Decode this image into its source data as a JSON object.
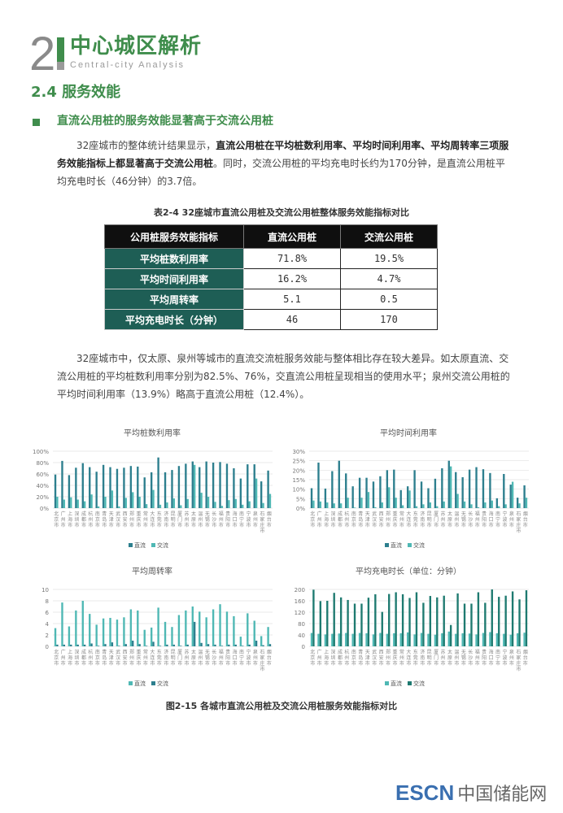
{
  "header": {
    "chapter_number": "2",
    "chapter_title": "中心城区解析",
    "chapter_subtitle": "Central-city Analysis"
  },
  "section": {
    "title": "2.4 服务效能",
    "subtitle": "直流公用桩的服务效能显著高于交流公用桩"
  },
  "paragraph1": {
    "a": "32座城市的整体统计结果显示，",
    "bold": "直流公用桩在平均桩数利用率、平均时间利用率、平均周转率三项服务效能指标上都显著高于交流公用桩",
    "b": "。同时，交流公用桩的平均充电时长约为170分钟，是直流公用桩平均充电时长（46分钟）的3.7倍。"
  },
  "table": {
    "caption": "表2-4 32座城市直流公用桩及交流公用桩整体服务效能指标对比",
    "headers": [
      "公用桩服务效能指标",
      "直流公用桩",
      "交流公用桩"
    ],
    "rows": [
      [
        "平均桩数利用率",
        "71.8%",
        "19.5%"
      ],
      [
        "平均时间利用率",
        "16.2%",
        "4.7%"
      ],
      [
        "平均周转率",
        "5.1",
        "0.5"
      ],
      [
        "平均充电时长（分钟）",
        "46",
        "170"
      ]
    ]
  },
  "paragraph2": "32座城市中，仅太原、泉州等城市的直流交流桩服务效能与整体相比存在较大差异。如太原直流、交流公用桩的平均桩数利用率分别为82.5%、76%，交直流公用桩呈现相当的使用水平；泉州交流公用桩的平均时间利用率（13.9%）略高于直流公用桩（12.4%）。",
  "colors": {
    "green": "#3f8d4c",
    "dark_teal": "#2d7f8e",
    "light_teal": "#4fb8b4",
    "table_teal": "#1e5e55"
  },
  "chart_data": [
    {
      "type": "bar",
      "title": "平均桩数利用率",
      "yticks": [
        "0%",
        "20%",
        "40%",
        "60%",
        "80%",
        "100%"
      ],
      "ylim": [
        0,
        100
      ],
      "grid": true,
      "legend": "bottom",
      "categories": [
        "北京市",
        "广州市",
        "上海市",
        "深圳市",
        "成都市",
        "杭州市",
        "南京市",
        "青岛市",
        "天津市",
        "武汉市",
        "西安市",
        "郑州市",
        "重庆市",
        "常州市",
        "大连市",
        "东莞市",
        "济南市",
        "昆明市",
        "厦门市",
        "苏州市",
        "太原市",
        "温州市",
        "无锡市",
        "长沙市",
        "福州市",
        "贵阳市",
        "海口市",
        "南宁市",
        "宁波市",
        "泉州市",
        "石家庄市",
        "烟台市"
      ],
      "series": [
        {
          "name": "直流",
          "color": "#2d7f8e",
          "values": [
            59,
            83,
            58,
            71,
            79,
            72,
            64,
            76,
            72,
            69,
            71,
            74,
            73,
            54,
            63,
            89,
            63,
            67,
            74,
            78,
            82,
            72,
            82,
            80,
            81,
            78,
            70,
            52,
            77,
            77,
            47,
            66
          ]
        },
        {
          "name": "交流",
          "color": "#4fb8b4",
          "values": [
            20,
            15,
            19,
            15,
            12,
            24,
            3,
            20,
            31,
            3,
            18,
            28,
            20,
            7,
            32,
            6,
            10,
            17,
            5,
            16,
            76,
            27,
            20,
            11,
            4,
            14,
            16,
            6,
            12,
            52,
            9,
            25
          ]
        }
      ]
    },
    {
      "type": "bar",
      "title": "平均时间利用率",
      "yticks": [
        "0%",
        "5%",
        "10%",
        "15%",
        "20%",
        "25%",
        "30%"
      ],
      "ylim": [
        0,
        30
      ],
      "grid": true,
      "legend": "bottom",
      "categories": [
        "北京市",
        "广州市",
        "上海市",
        "深圳市",
        "成都市",
        "杭州市",
        "南京市",
        "青岛市",
        "天津市",
        "武汉市",
        "西安市",
        "郑州市",
        "重庆市",
        "常州市",
        "大连市",
        "东莞市",
        "济南市",
        "昆明市",
        "厦门市",
        "苏州市",
        "太原市",
        "温州市",
        "无锡市",
        "长沙市",
        "福州市",
        "贵阳市",
        "海口市",
        "南宁市",
        "宁波市",
        "泉州市",
        "石家庄市",
        "烟台市"
      ],
      "series": [
        {
          "name": "直流",
          "color": "#2d7f8e",
          "values": [
            10.5,
            24,
            10.3,
            19.5,
            25,
            18.3,
            11.5,
            16,
            16,
            14,
            16.8,
            20,
            20.3,
            9.5,
            11.5,
            20,
            14,
            10.5,
            15.5,
            21,
            25,
            19,
            16.3,
            20.3,
            21.6,
            20.5,
            18.5,
            5.2,
            18,
            12.4,
            5.5,
            12
          ]
        },
        {
          "name": "交流",
          "color": "#4fb8b4",
          "values": [
            4,
            3.5,
            3,
            2.5,
            2.5,
            5.5,
            0.3,
            5.5,
            8.5,
            0.5,
            3,
            11,
            5.5,
            1.5,
            9.3,
            1,
            2,
            3,
            1,
            3.5,
            22,
            7.5,
            3.5,
            2,
            0.5,
            3,
            4,
            1,
            2,
            13.9,
            2.5,
            5.5
          ]
        }
      ]
    },
    {
      "type": "bar",
      "title": "平均周转率",
      "yticks": [
        "0",
        "2",
        "4",
        "6",
        "8",
        "10"
      ],
      "ylim": [
        0,
        10
      ],
      "grid": true,
      "legend": "bottom",
      "categories": [
        "北京市",
        "广州市",
        "上海市",
        "深圳市",
        "成都市",
        "杭州市",
        "南京市",
        "青岛市",
        "天津市",
        "武汉市",
        "西安市",
        "郑州市",
        "重庆市",
        "常州市",
        "大连市",
        "东莞市",
        "济南市",
        "昆明市",
        "厦门市",
        "苏州市",
        "太原市",
        "温州市",
        "无锡市",
        "长沙市",
        "福州市",
        "贵阳市",
        "海口市",
        "南宁市",
        "宁波市",
        "泉州市",
        "石家庄市",
        "烟台市"
      ],
      "series": [
        {
          "name": "直流",
          "color": "#4fb8b4",
          "values": [
            3.2,
            7.7,
            3.5,
            6.3,
            8,
            5.7,
            3.8,
            4.9,
            5,
            4.7,
            5.1,
            6.5,
            6.3,
            2.9,
            3.3,
            6.8,
            4.3,
            3.4,
            5.5,
            6.3,
            7,
            6.1,
            5.1,
            6.5,
            7.4,
            6.1,
            5.3,
            1.7,
            5.8,
            4.5,
            1.8,
            3.4
          ]
        },
        {
          "name": "交流",
          "color": "#2d7f8e",
          "values": [
            0.3,
            0.3,
            0.3,
            0.3,
            0.3,
            0.5,
            0.1,
            0.4,
            0.7,
            0.1,
            0.4,
            1.0,
            0.4,
            0.1,
            0.8,
            0.1,
            0.3,
            0.3,
            0.1,
            0.3,
            4.3,
            0.6,
            0.4,
            0.3,
            0.1,
            0.3,
            0.3,
            0.1,
            0.3,
            1.0,
            0.2,
            0.4
          ]
        }
      ]
    },
    {
      "type": "bar",
      "title": "平均充电时长（单位：分钟）",
      "yticks": [
        "0",
        "40",
        "80",
        "120",
        "160",
        "200"
      ],
      "ylim": [
        0,
        200
      ],
      "grid": true,
      "legend": "bottom",
      "categories": [
        "北京市",
        "广州市",
        "上海市",
        "深圳市",
        "成都市",
        "杭州市",
        "南京市",
        "青岛市",
        "天津市",
        "武汉市",
        "西安市",
        "郑州市",
        "重庆市",
        "常州市",
        "大连市",
        "东莞市",
        "济南市",
        "昆明市",
        "厦门市",
        "苏州市",
        "太原市",
        "温州市",
        "无锡市",
        "长沙市",
        "福州市",
        "贵阳市",
        "海口市",
        "南宁市",
        "宁波市",
        "泉州市",
        "石家庄市",
        "烟台市"
      ],
      "series": [
        {
          "name": "直流",
          "color": "#4fb8b4",
          "values": [
            47,
            44,
            42,
            44,
            45,
            47,
            44,
            47,
            46,
            42,
            47,
            44,
            46,
            46,
            49,
            42,
            47,
            44,
            41,
            46,
            52,
            44,
            46,
            45,
            42,
            47,
            50,
            46,
            44,
            41,
            46,
            48
          ]
        },
        {
          "name": "交流",
          "color": "#1e7a70",
          "values": [
            199,
            159,
            160,
            188,
            172,
            163,
            150,
            150,
            171,
            183,
            121,
            184,
            190,
            183,
            170,
            190,
            153,
            177,
            172,
            178,
            75,
            186,
            150,
            150,
            190,
            153,
            200,
            174,
            178,
            193,
            165,
            197
          ]
        }
      ]
    }
  ],
  "figure_caption": "图2-15 各城市直流公用桩及交流公用桩服务效能指标对比",
  "logo": {
    "en": "ESCN",
    "cn": "中国储能网"
  }
}
